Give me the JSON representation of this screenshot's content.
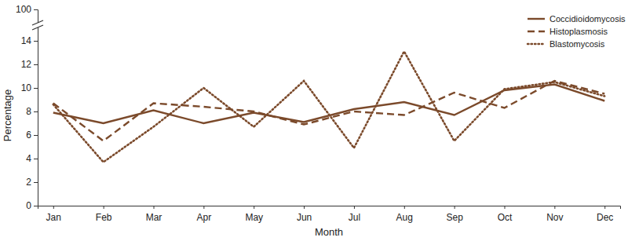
{
  "chart_data": {
    "type": "line",
    "x_label": "Month",
    "y_label": "Percentage",
    "categories": [
      "Jan",
      "Feb",
      "Mar",
      "Apr",
      "May",
      "Jun",
      "Jul",
      "Aug",
      "Sep",
      "Oct",
      "Nov",
      "Dec"
    ],
    "series": [
      {
        "name": "Coccidioidomycosis",
        "color": "#7b4a2b",
        "line_style": "solid",
        "values": [
          7.9,
          7.0,
          8.1,
          7.0,
          7.9,
          7.1,
          8.2,
          8.8,
          7.7,
          9.8,
          10.3,
          8.9
        ]
      },
      {
        "name": "Histoplasmosis",
        "color": "#7b4a2b",
        "line_style": "dashed",
        "values": [
          8.7,
          5.5,
          8.7,
          8.4,
          8.0,
          6.9,
          8.0,
          7.7,
          9.6,
          8.3,
          10.6,
          9.5
        ]
      },
      {
        "name": "Blastomycosis",
        "color": "#7b4a2b",
        "line_style": "dotted",
        "values": [
          8.6,
          3.7,
          6.7,
          10.0,
          6.7,
          10.6,
          4.9,
          13.1,
          5.5,
          9.9,
          10.5,
          9.3
        ]
      }
    ],
    "ylim": [
      0,
      100
    ],
    "yticks": [
      0,
      2,
      4,
      6,
      8,
      10,
      12,
      14,
      100
    ],
    "legend": "top-right",
    "grid": false
  }
}
